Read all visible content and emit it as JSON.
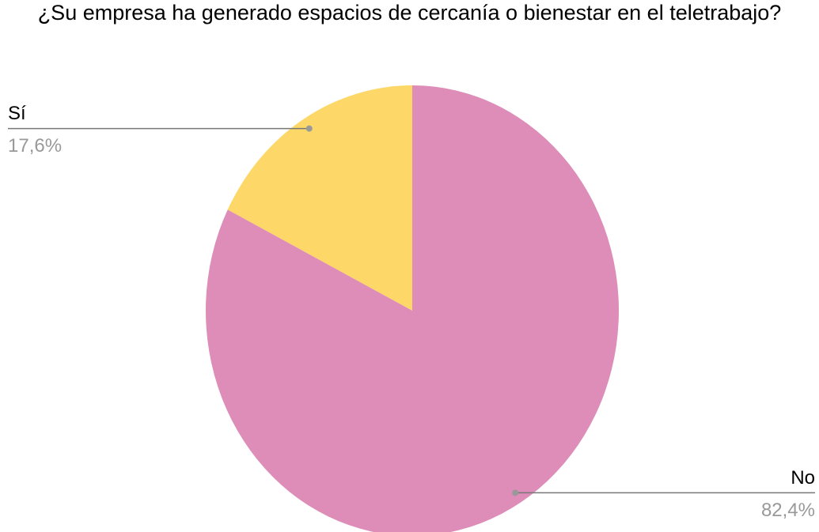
{
  "chart_data": {
    "type": "pie",
    "title": "¿Su empresa ha generado espacios de cercanía o bienestar en el teletrabajo?",
    "categories": [
      "Sí",
      "No"
    ],
    "values": [
      17.6,
      82.4
    ],
    "value_labels": [
      "17,6%",
      "82,4%"
    ],
    "colors": [
      "#fdd768",
      "#dd8db7"
    ]
  }
}
